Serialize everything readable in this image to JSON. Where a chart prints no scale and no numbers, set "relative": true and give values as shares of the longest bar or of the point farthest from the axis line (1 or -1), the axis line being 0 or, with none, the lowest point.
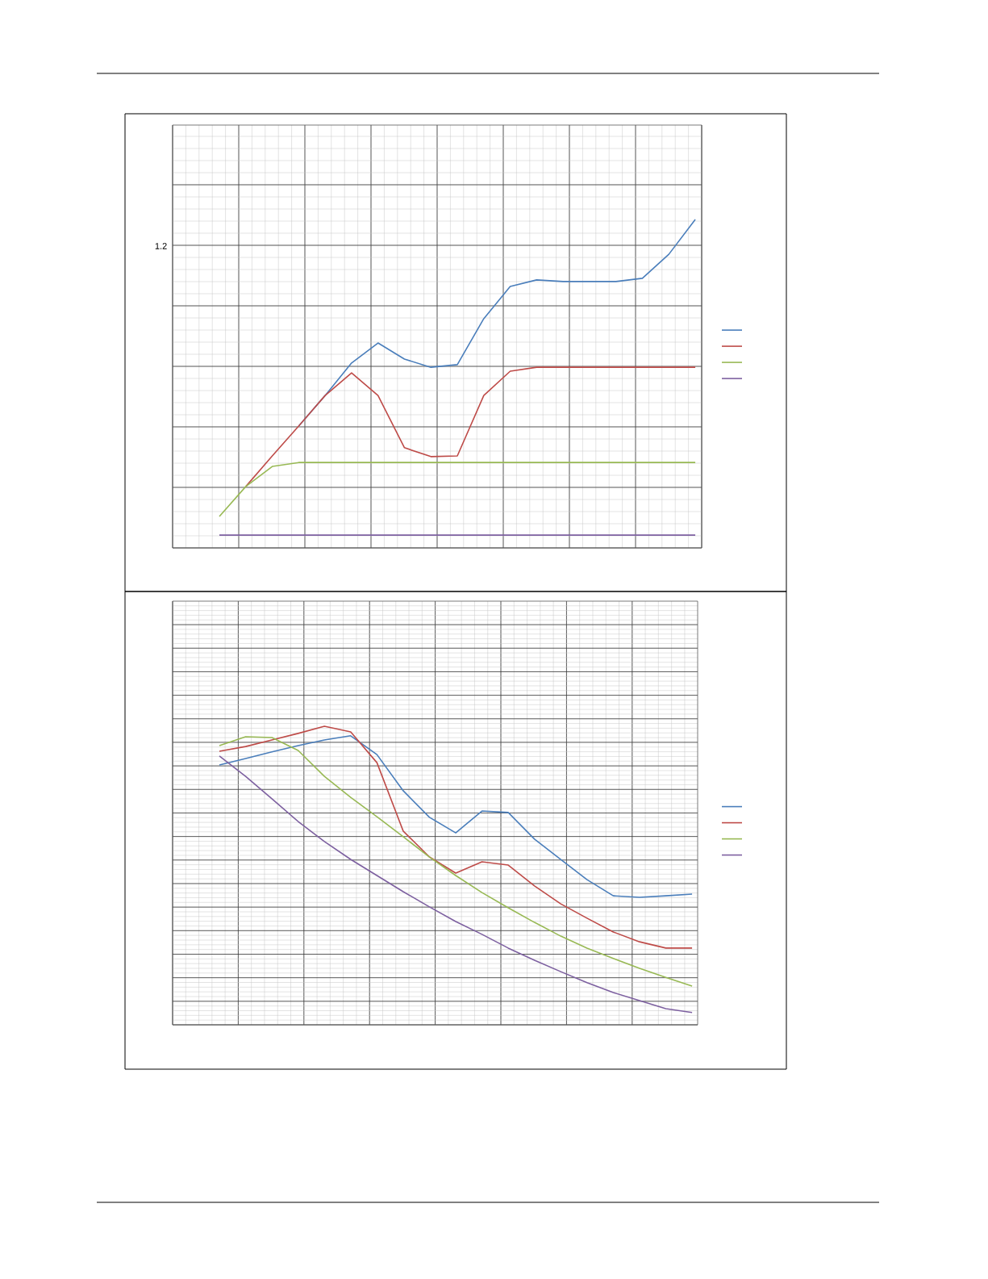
{
  "chart_data": [
    {
      "type": "line",
      "relative": true,
      "grid": true,
      "categories": [
        null,
        null,
        null,
        null,
        null,
        null,
        null,
        null,
        null,
        null,
        null,
        null,
        null,
        null,
        null,
        null,
        null,
        null,
        null
      ],
      "annotations": [
        "1.2"
      ],
      "series": [
        {
          "color": "#4a7ebb",
          "values": [
            null,
            null,
            null,
            0.371,
            0.464,
            0.563,
            0.624,
            0.575,
            0.55,
            0.558,
            0.698,
            0.796,
            0.816,
            0.811,
            0.811,
            0.811,
            0.821,
            0.894,
            1.0
          ]
        },
        {
          "color": "#be4b48",
          "values": [
            null,
            0.187,
            0.28,
            0.371,
            0.464,
            0.533,
            0.464,
            0.305,
            0.278,
            0.28,
            0.464,
            0.538,
            0.55,
            0.55,
            0.55,
            0.55,
            0.55,
            0.55,
            0.55
          ]
        },
        {
          "color": "#98b954",
          "values": [
            0.096,
            0.187,
            0.248,
            0.26,
            0.26,
            0.26,
            0.26,
            0.26,
            0.26,
            0.26,
            0.26,
            0.26,
            0.26,
            0.26,
            0.26,
            0.26,
            0.26,
            0.26,
            0.26
          ]
        },
        {
          "color": "#7d60a0",
          "values": [
            0.039,
            0.039,
            0.039,
            0.039,
            0.039,
            0.039,
            0.039,
            0.039,
            0.039,
            0.039,
            0.039,
            0.039,
            0.039,
            0.039,
            0.039,
            0.039,
            0.039,
            0.039,
            0.039
          ]
        }
      ]
    },
    {
      "type": "line",
      "relative": true,
      "grid": true,
      "categories": [
        null,
        null,
        null,
        null,
        null,
        null,
        null,
        null,
        null,
        null,
        null,
        null,
        null,
        null,
        null,
        null,
        null,
        null,
        null
      ],
      "series": [
        {
          "color": "#4a7ebb",
          "values": [
            0.87,
            0.892,
            0.914,
            0.935,
            0.954,
            0.968,
            0.905,
            0.784,
            0.695,
            0.643,
            0.716,
            0.711,
            0.622,
            0.554,
            0.486,
            0.432,
            0.427,
            0.432,
            0.438
          ]
        },
        {
          "color": "#be4b48",
          "values": [
            0.916,
            0.932,
            0.954,
            0.976,
            1.0,
            0.981,
            0.878,
            0.649,
            0.562,
            0.508,
            0.546,
            0.535,
            0.465,
            0.405,
            0.357,
            0.311,
            0.278,
            0.257,
            0.257
          ]
        },
        {
          "color": "#98b954",
          "values": [
            0.935,
            0.965,
            0.962,
            0.919,
            0.832,
            0.762,
            0.697,
            0.63,
            0.562,
            0.5,
            0.443,
            0.392,
            0.343,
            0.297,
            0.257,
            0.222,
            0.189,
            0.159,
            0.13
          ]
        },
        {
          "color": "#7d60a0",
          "values": [
            0.9,
            0.832,
            0.757,
            0.681,
            0.614,
            0.554,
            0.5,
            0.446,
            0.395,
            0.346,
            0.303,
            0.257,
            0.216,
            0.178,
            0.141,
            0.108,
            0.081,
            0.054,
            0.041
          ]
        }
      ]
    }
  ]
}
